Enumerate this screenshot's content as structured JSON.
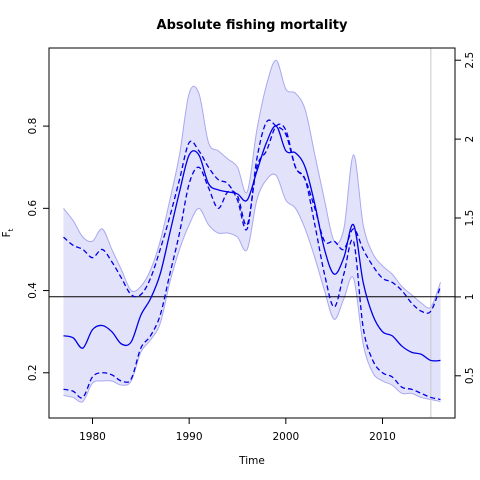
{
  "chart_data": {
    "type": "line",
    "title": "Absolute fishing mortality",
    "xlabel": "Time",
    "ylabel": "F",
    "ylabel_subscript": "t",
    "xlim": [
      1975.5,
      2017.5
    ],
    "ylim": [
      0.09,
      0.99
    ],
    "xticks": [
      1980,
      1990,
      2000,
      2010
    ],
    "yticks": [
      0.2,
      0.4,
      0.6,
      0.8
    ],
    "y2lim": [
      0.2325,
      2.5775
    ],
    "y2ticks": [
      0.5,
      1.0,
      1.5,
      2.0,
      2.5
    ],
    "y2tick_labels": [
      "0.5",
      "1",
      "1.5",
      "2",
      "2.5"
    ],
    "reference_line_y": 0.385,
    "vertical_line_x": 2015.0,
    "grid": false,
    "colors": {
      "estimate": "#0000e6",
      "ci_fill": "#e2e2fb",
      "ci_edge": "#a8a8f0",
      "reference": "#000000",
      "vertical": "#c8c8c8"
    },
    "series": [
      {
        "style": "solid-line",
        "x": [
          1977,
          1978,
          1979,
          1980,
          1981,
          1982,
          1983,
          1984,
          1985,
          1986,
          1987,
          1988,
          1989,
          1990,
          1991,
          1992,
          1993,
          1994,
          1995,
          1996,
          1997,
          1998,
          1999,
          2000,
          2001,
          2002,
          2003,
          2004,
          2005,
          2006,
          2007,
          2008,
          2009,
          2010,
          2011,
          2012,
          2013,
          2014,
          2015,
          2016
        ],
        "values": [
          0.29,
          0.285,
          0.26,
          0.305,
          0.315,
          0.3,
          0.27,
          0.275,
          0.34,
          0.38,
          0.44,
          0.54,
          0.64,
          0.73,
          0.73,
          0.66,
          0.645,
          0.64,
          0.635,
          0.62,
          0.69,
          0.76,
          0.8,
          0.74,
          0.735,
          0.7,
          0.61,
          0.5,
          0.44,
          0.48,
          0.56,
          0.42,
          0.34,
          0.3,
          0.29,
          0.265,
          0.25,
          0.245,
          0.23,
          0.23
        ]
      },
      {
        "style": "dashed-upper",
        "x": [
          1977,
          1978,
          1979,
          1980,
          1981,
          1982,
          1983,
          1984,
          1985,
          1986,
          1987,
          1988,
          1989,
          1990,
          1991,
          1992,
          1993,
          1994,
          1995,
          1996,
          1997,
          1998,
          1999,
          2000,
          2001,
          2002,
          2003,
          2004,
          2005,
          2006,
          2007,
          2008,
          2009,
          2010,
          2011,
          2012,
          2013,
          2014,
          2015,
          2016
        ],
        "values": [
          0.53,
          0.51,
          0.5,
          0.48,
          0.5,
          0.47,
          0.43,
          0.39,
          0.39,
          0.43,
          0.5,
          0.58,
          0.67,
          0.76,
          0.74,
          0.7,
          0.67,
          0.66,
          0.62,
          0.55,
          0.72,
          0.81,
          0.8,
          0.78,
          0.7,
          0.67,
          0.6,
          0.52,
          0.52,
          0.5,
          0.55,
          0.5,
          0.46,
          0.43,
          0.42,
          0.4,
          0.37,
          0.35,
          0.35,
          0.41
        ]
      },
      {
        "style": "dashed-lower",
        "x": [
          1977,
          1978,
          1979,
          1980,
          1981,
          1982,
          1983,
          1984,
          1985,
          1986,
          1987,
          1988,
          1989,
          1990,
          1991,
          1992,
          1993,
          1994,
          1995,
          1996,
          1997,
          1998,
          1999,
          2000,
          2001,
          2002,
          2003,
          2004,
          2005,
          2006,
          2007,
          2008,
          2009,
          2010,
          2011,
          2012,
          2013,
          2014,
          2015,
          2016
        ],
        "values": [
          0.16,
          0.155,
          0.14,
          0.19,
          0.2,
          0.195,
          0.18,
          0.185,
          0.26,
          0.29,
          0.34,
          0.44,
          0.54,
          0.66,
          0.7,
          0.65,
          0.6,
          0.64,
          0.63,
          0.56,
          0.7,
          0.74,
          0.8,
          0.79,
          0.7,
          0.67,
          0.56,
          0.44,
          0.36,
          0.44,
          0.52,
          0.31,
          0.23,
          0.2,
          0.19,
          0.165,
          0.16,
          0.15,
          0.14,
          0.135
        ]
      }
    ],
    "band": {
      "style": "confidence-interval",
      "x": [
        1977,
        1978,
        1979,
        1980,
        1981,
        1982,
        1983,
        1984,
        1985,
        1986,
        1987,
        1988,
        1989,
        1990,
        1991,
        1992,
        1993,
        1994,
        1995,
        1996,
        1997,
        1998,
        1999,
        2000,
        2001,
        2002,
        2003,
        2004,
        2005,
        2006,
        2007,
        2008,
        2009,
        2010,
        2011,
        2012,
        2013,
        2014,
        2015,
        2016
      ],
      "upper": [
        0.6,
        0.57,
        0.53,
        0.52,
        0.55,
        0.5,
        0.45,
        0.4,
        0.41,
        0.45,
        0.52,
        0.62,
        0.73,
        0.88,
        0.88,
        0.76,
        0.74,
        0.72,
        0.7,
        0.64,
        0.79,
        0.9,
        0.96,
        0.89,
        0.88,
        0.84,
        0.73,
        0.62,
        0.52,
        0.55,
        0.73,
        0.56,
        0.49,
        0.46,
        0.44,
        0.41,
        0.39,
        0.37,
        0.36,
        0.42
      ],
      "lower": [
        0.145,
        0.14,
        0.13,
        0.175,
        0.18,
        0.18,
        0.17,
        0.18,
        0.25,
        0.28,
        0.32,
        0.42,
        0.5,
        0.56,
        0.6,
        0.56,
        0.54,
        0.54,
        0.53,
        0.5,
        0.62,
        0.67,
        0.68,
        0.62,
        0.6,
        0.55,
        0.48,
        0.4,
        0.33,
        0.38,
        0.43,
        0.27,
        0.2,
        0.18,
        0.17,
        0.15,
        0.15,
        0.14,
        0.135,
        0.13
      ]
    }
  }
}
